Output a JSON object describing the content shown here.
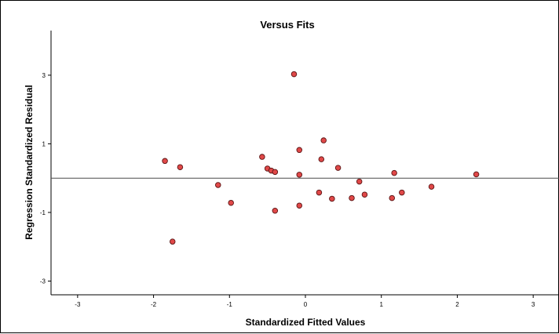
{
  "chart_data": {
    "type": "scatter",
    "title": "Versus Fits",
    "xlabel": "Standardized Fitted Values",
    "ylabel": "Regression Standardized Residual",
    "xlim": [
      -3.35,
      3.35
    ],
    "ylim": [
      -3.4,
      4.3
    ],
    "x_ticks": [
      -3,
      -2,
      -1,
      0,
      1,
      2,
      3
    ],
    "y_ticks": [
      -3,
      -1,
      1,
      3
    ],
    "x_tick_labels": [
      "-3",
      "-2",
      "-1",
      "0",
      "1",
      "2",
      "3"
    ],
    "y_tick_labels": [
      "-3",
      "-1",
      "1",
      "3"
    ],
    "reference_line_y": 0,
    "grid": false,
    "marker_color": "#e04848",
    "marker_edge_color": "#5a1414",
    "points": [
      {
        "x": -1.85,
        "y": 0.5
      },
      {
        "x": -1.65,
        "y": 0.32
      },
      {
        "x": -1.75,
        "y": -1.85
      },
      {
        "x": -1.15,
        "y": -0.2
      },
      {
        "x": -0.98,
        "y": -0.72
      },
      {
        "x": -0.57,
        "y": 0.62
      },
      {
        "x": -0.5,
        "y": 0.28
      },
      {
        "x": -0.45,
        "y": 0.22
      },
      {
        "x": -0.4,
        "y": 0.18
      },
      {
        "x": -0.4,
        "y": -0.95
      },
      {
        "x": -0.15,
        "y": 3.03
      },
      {
        "x": -0.08,
        "y": 0.82
      },
      {
        "x": -0.08,
        "y": 0.1
      },
      {
        "x": -0.08,
        "y": -0.8
      },
      {
        "x": 0.18,
        "y": -0.42
      },
      {
        "x": 0.21,
        "y": 0.55
      },
      {
        "x": 0.24,
        "y": 1.1
      },
      {
        "x": 0.35,
        "y": -0.6
      },
      {
        "x": 0.43,
        "y": 0.3
      },
      {
        "x": 0.61,
        "y": -0.58
      },
      {
        "x": 0.71,
        "y": -0.1
      },
      {
        "x": 0.78,
        "y": -0.48
      },
      {
        "x": 1.14,
        "y": -0.58
      },
      {
        "x": 1.17,
        "y": 0.15
      },
      {
        "x": 1.27,
        "y": -0.42
      },
      {
        "x": 1.66,
        "y": -0.25
      },
      {
        "x": 2.25,
        "y": 0.11
      }
    ]
  }
}
